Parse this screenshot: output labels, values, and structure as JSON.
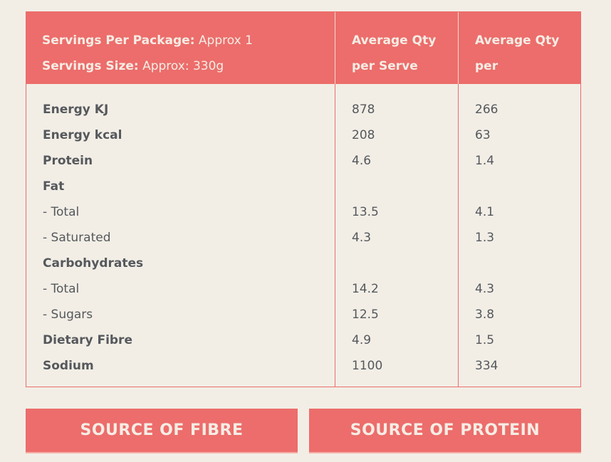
{
  "header": {
    "servings_per_package_label": "Servings Per Package:",
    "servings_per_package_value": "Approx 1",
    "serving_size_label": "Servings Size:",
    "serving_size_value": "Approx: 330g",
    "col2_line1": "Average Qty",
    "col2_line2": "per Serve",
    "col3_line1": "Average Qty",
    "col3_line2": "per"
  },
  "rows": [
    {
      "label": "Energy KJ",
      "bold": true,
      "serve": "878",
      "per": "266"
    },
    {
      "label": "Energy kcal",
      "bold": true,
      "serve": "208",
      "per": "63"
    },
    {
      "label": "Protein",
      "bold": true,
      "serve": "4.6",
      "per": "1.4"
    },
    {
      "label": "Fat",
      "bold": true,
      "serve": "",
      "per": ""
    },
    {
      "label": "- Total",
      "bold": false,
      "serve": "13.5",
      "per": "4.1"
    },
    {
      "label": "- Saturated",
      "bold": false,
      "serve": "4.3",
      "per": "1.3"
    },
    {
      "label": "Carbohydrates",
      "bold": true,
      "serve": "",
      "per": ""
    },
    {
      "label": "- Total",
      "bold": false,
      "serve": "14.2",
      "per": "4.3"
    },
    {
      "label": "- Sugars",
      "bold": false,
      "serve": "12.5",
      "per": "3.8"
    },
    {
      "label": "Dietary Fibre",
      "bold": true,
      "serve": "4.9",
      "per": "1.5"
    },
    {
      "label": "Sodium",
      "bold": true,
      "serve": "1100",
      "per": "334"
    }
  ],
  "badges": [
    "SOURCE OF FIBRE",
    "SOURCE OF PROTEIN"
  ],
  "colors": {
    "accent": "#ec6d6b",
    "background": "#f2eee6",
    "text": "#55585c"
  }
}
